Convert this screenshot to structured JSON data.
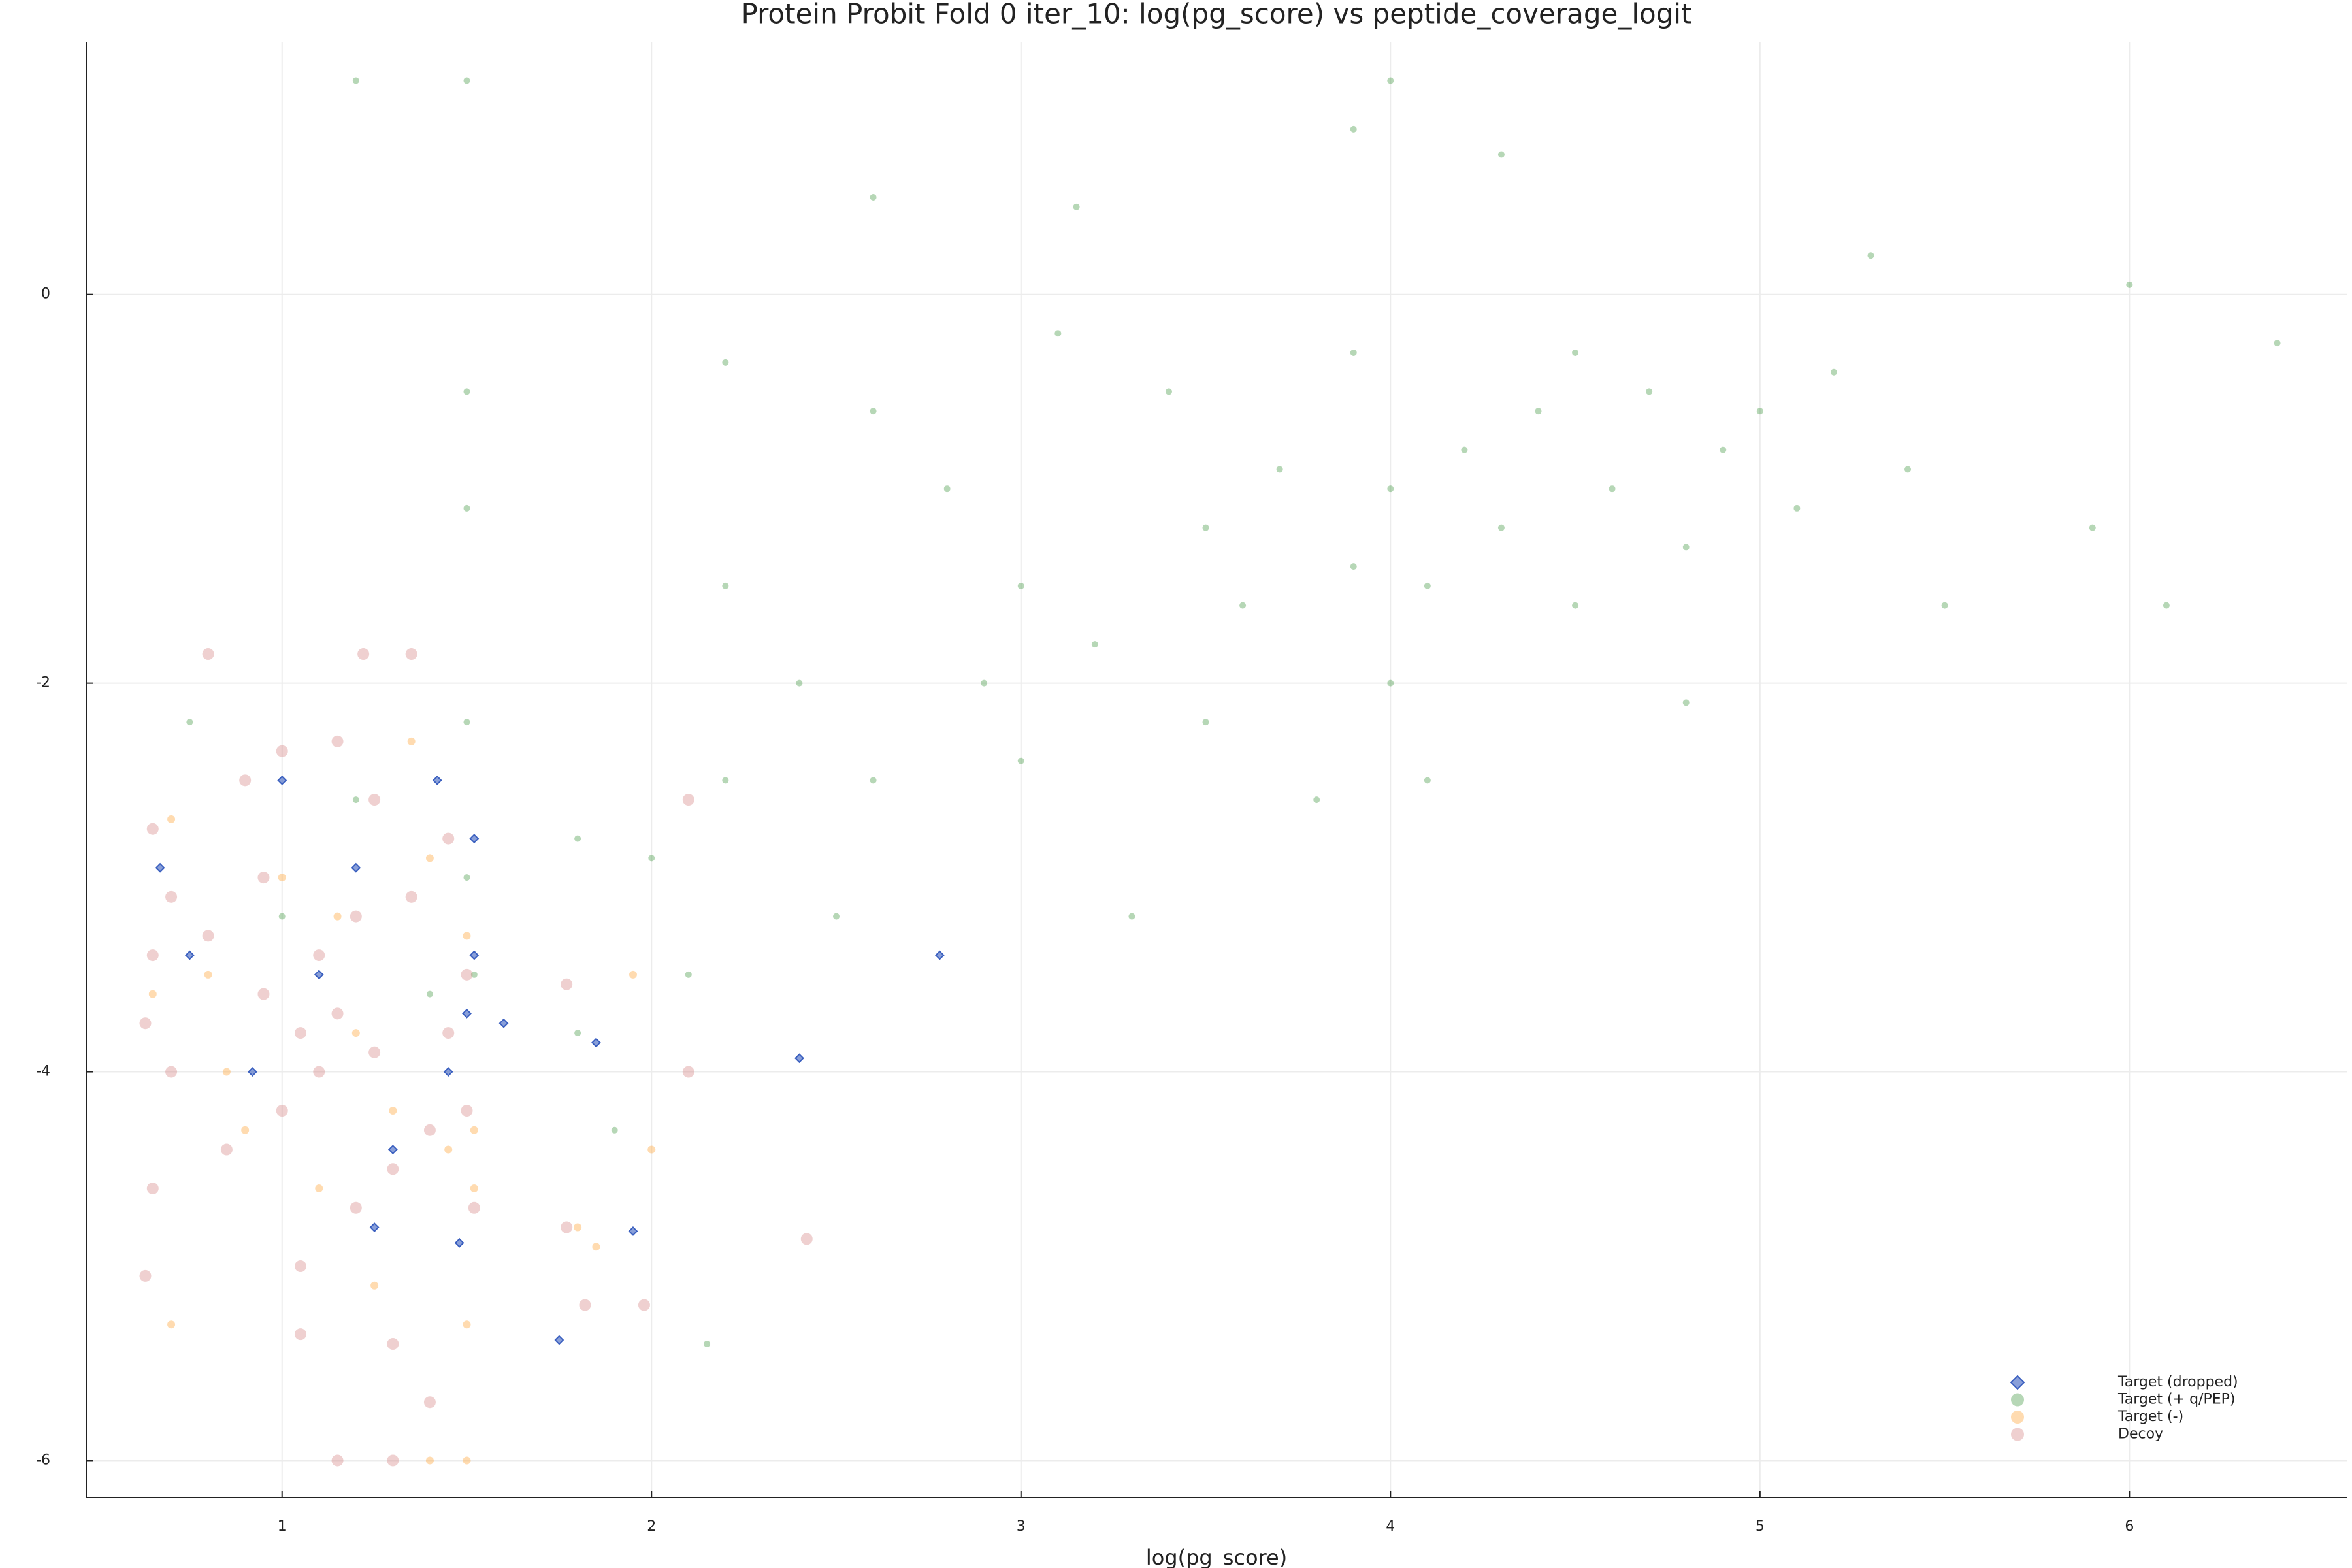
{
  "chart_data": {
    "type": "scatter",
    "title": "Protein Probit Fold 0 iter_10: log(pg_score) vs peptide_coverage_logit",
    "x_label": "log(pg_score)",
    "xlim": [
      0.47,
      6.59
    ],
    "ylim": [
      -6.19,
      1.3
    ],
    "xticks": [
      1,
      2,
      3,
      4,
      5,
      6
    ],
    "yticks": [
      0,
      -2,
      -4,
      -6
    ],
    "grid": true,
    "legend": "bottom-right",
    "series": [
      {
        "name": "Target (dropped)",
        "color": "#3a5fbf",
        "marker": "diamond",
        "alpha": 0.6,
        "x": [
          0.67,
          0.75,
          0.92,
          1.0,
          1.1,
          1.2,
          1.3,
          1.42,
          1.45,
          1.48,
          1.5,
          1.52,
          1.52,
          1.85,
          1.95,
          1.75,
          2.4,
          2.78,
          1.6,
          1.25
        ],
        "values": [
          -2.95,
          -3.4,
          -4.0,
          -2.5,
          -3.5,
          -2.95,
          -4.4,
          -2.5,
          -4.0,
          -4.88,
          -3.7,
          -2.8,
          -3.4,
          -3.85,
          -4.82,
          -5.38,
          -3.93,
          -3.4,
          -3.75,
          -4.8
        ]
      },
      {
        "name": "Target (+ q/PEP)",
        "color": "#2e8b2e",
        "marker": "circle",
        "alpha": 0.35,
        "x": [
          1.5,
          1.5,
          1.5,
          1.5,
          1.52,
          1.2,
          1.8,
          2.0,
          2.2,
          2.2,
          2.2,
          2.1,
          2.4,
          2.6,
          2.6,
          2.5,
          2.8,
          2.9,
          3.0,
          3.0,
          3.1,
          3.2,
          3.3,
          3.4,
          3.5,
          3.5,
          3.6,
          3.7,
          3.8,
          3.9,
          3.9,
          4.0,
          4.0,
          4.1,
          4.2,
          4.3,
          4.4,
          4.5,
          4.5,
          4.6,
          4.7,
          4.8,
          4.9,
          5.0,
          5.1,
          5.2,
          5.3,
          5.4,
          5.5,
          5.9,
          6.0,
          6.1,
          6.4,
          3.9,
          4.0,
          4.3,
          2.6,
          1.2,
          1.5,
          3.15,
          4.1,
          4.8,
          1.9,
          2.15,
          0.75,
          1.0,
          1.4,
          1.8
        ],
        "values": [
          -0.5,
          -1.1,
          -2.2,
          -3.0,
          -3.5,
          -2.6,
          -2.8,
          -2.9,
          -0.35,
          -1.5,
          -2.5,
          -3.5,
          -2.0,
          -0.6,
          -2.5,
          -3.2,
          -1.0,
          -2.0,
          -1.5,
          -2.4,
          -0.2,
          -1.8,
          -3.2,
          -0.5,
          -1.2,
          -2.2,
          -1.6,
          -0.9,
          -2.6,
          -1.4,
          -0.3,
          -1.0,
          -2.0,
          -1.5,
          -0.8,
          -1.2,
          -0.6,
          -0.3,
          -1.6,
          -1.0,
          -0.5,
          -1.3,
          -0.8,
          -0.6,
          -1.1,
          -0.4,
          0.2,
          -0.9,
          -1.6,
          -1.2,
          0.05,
          -1.6,
          -0.25,
          0.85,
          1.1,
          0.72,
          0.5,
          1.1,
          1.1,
          0.45,
          -2.5,
          -2.1,
          -4.3,
          -5.4,
          -2.2,
          -3.2,
          -3.6,
          -3.8
        ]
      },
      {
        "name": "Target (-)",
        "color": "#ffb050",
        "marker": "circle",
        "alpha": 0.45,
        "x": [
          0.7,
          0.8,
          0.9,
          1.0,
          1.1,
          1.2,
          1.3,
          1.4,
          1.45,
          1.5,
          1.52,
          1.52,
          1.8,
          1.85,
          1.95,
          2.0,
          0.7,
          1.5,
          1.4,
          1.5,
          0.85,
          1.25,
          1.35,
          0.65,
          1.15
        ],
        "values": [
          -2.7,
          -3.5,
          -4.3,
          -3.0,
          -4.6,
          -3.8,
          -4.2,
          -2.9,
          -4.4,
          -3.3,
          -4.3,
          -4.6,
          -4.8,
          -4.9,
          -3.5,
          -4.4,
          -5.3,
          -5.3,
          -6.0,
          -6.0,
          -4.0,
          -5.1,
          -2.3,
          -3.6,
          -3.2
        ]
      },
      {
        "name": "Decoy",
        "color": "#d88a8a",
        "marker": "circle",
        "alpha": 0.4,
        "x": [
          0.8,
          1.22,
          1.35,
          0.65,
          0.7,
          0.65,
          0.63,
          0.65,
          0.63,
          0.7,
          0.8,
          0.85,
          0.9,
          0.95,
          1.0,
          1.0,
          1.05,
          1.05,
          1.1,
          1.1,
          1.15,
          1.15,
          1.2,
          1.2,
          1.25,
          1.25,
          1.3,
          1.3,
          1.35,
          1.4,
          1.4,
          1.45,
          1.45,
          1.5,
          1.5,
          1.52,
          1.15,
          1.3,
          1.77,
          1.77,
          1.82,
          1.98,
          2.1,
          2.1,
          2.42,
          0.95,
          1.05
        ],
        "values": [
          -1.85,
          -1.85,
          -1.85,
          -2.75,
          -3.1,
          -3.4,
          -3.75,
          -4.6,
          -5.05,
          -4.0,
          -3.3,
          -4.4,
          -2.5,
          -3.6,
          -2.35,
          -4.2,
          -5.0,
          -5.35,
          -3.4,
          -4.0,
          -3.7,
          -2.3,
          -4.7,
          -3.2,
          -3.9,
          -2.6,
          -4.5,
          -5.4,
          -3.1,
          -4.3,
          -5.7,
          -3.8,
          -2.8,
          -3.5,
          -4.2,
          -4.7,
          -6.0,
          -6.0,
          -3.55,
          -4.8,
          -5.2,
          -5.2,
          -2.6,
          -4.0,
          -4.86,
          -3.0,
          -3.8
        ]
      }
    ]
  }
}
